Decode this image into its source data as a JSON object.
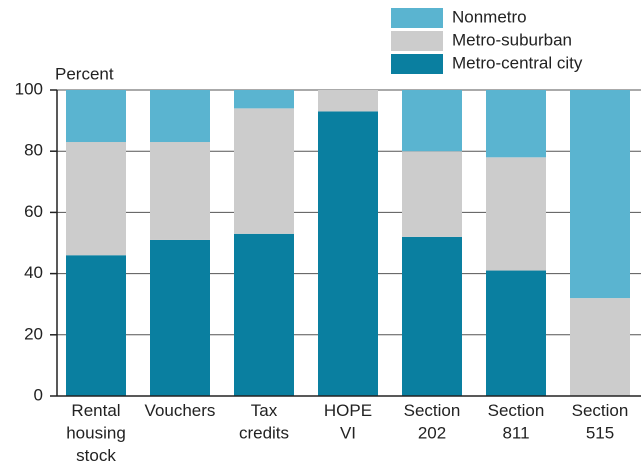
{
  "chart_data": {
    "type": "stacked_bar",
    "y_label": "Percent",
    "categories": [
      [
        "Rental",
        "housing",
        "stock"
      ],
      [
        "Vouchers"
      ],
      [
        "Tax",
        "credits"
      ],
      [
        "HOPE",
        "VI"
      ],
      [
        "Section",
        "202"
      ],
      [
        "Section",
        "811"
      ],
      [
        "Section",
        "515"
      ]
    ],
    "series": [
      {
        "name": "Metro-central city",
        "color": "#0a7fa0",
        "values": [
          46,
          51,
          53,
          93,
          52,
          41,
          0
        ]
      },
      {
        "name": "Metro-suburban",
        "color": "#cccccc",
        "values": [
          37,
          32,
          41,
          7,
          28,
          37,
          32
        ]
      },
      {
        "name": "Nonmetro",
        "color": "#5ab4d0",
        "values": [
          17,
          17,
          6,
          0,
          20,
          22,
          68
        ]
      }
    ],
    "ylim": [
      0,
      100
    ],
    "yticks": [
      0,
      20,
      40,
      60,
      80,
      100
    ],
    "grid": true
  }
}
